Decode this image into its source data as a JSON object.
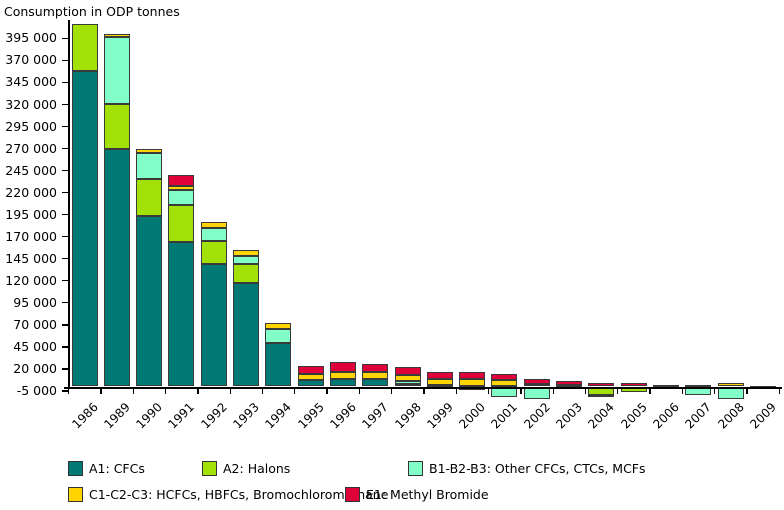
{
  "chart_data": {
    "type": "bar",
    "stacked": true,
    "title": "Consumption in ODP tonnes",
    "ylabel": "Consumption in ODP tonnes",
    "xlabel": "",
    "ylim": [
      -5000,
      395000
    ],
    "ytick_step": 25000,
    "ytick_labels": [
      "395 000",
      "370 000",
      "345 000",
      "320 000",
      "295 000",
      "270 000",
      "245 000",
      "220 000",
      "195 000",
      "170 000",
      "145 000",
      "120 000",
      "95 000",
      "70 000",
      "45 000",
      "20 000",
      "-5 000"
    ],
    "ytick_values": [
      395000,
      370000,
      345000,
      320000,
      295000,
      270000,
      245000,
      220000,
      195000,
      170000,
      145000,
      120000,
      95000,
      70000,
      45000,
      20000,
      -5000
    ],
    "grid": false,
    "legend_position": "bottom",
    "categories": [
      "1986",
      "1989",
      "1990",
      "1991",
      "1992",
      "1993",
      "1994",
      "1995",
      "1996",
      "1997",
      "1998",
      "1999",
      "2000",
      "2001",
      "2002",
      "2003",
      "2004",
      "2005",
      "2006",
      "2007",
      "2008",
      "2009"
    ],
    "series": [
      {
        "name": "A1: CFCs",
        "color": "#007874",
        "values": [
          358000,
          270000,
          193000,
          164000,
          139000,
          117000,
          49000,
          7000,
          9000,
          8000,
          3000,
          2000,
          1000,
          1000,
          0,
          0,
          0,
          0,
          0,
          0,
          0,
          0
        ]
      },
      {
        "name": "A2: Halons",
        "color": "#A2E00A",
        "values": [
          53000,
          51000,
          42000,
          42000,
          26000,
          22000,
          0,
          0,
          0,
          0,
          0,
          0,
          0,
          0,
          0,
          0,
          -10000,
          -6000,
          0,
          0,
          0,
          0
        ]
      },
      {
        "name": "B1-B2-B3: Other CFCs, CTCs, MCFs",
        "color": "#82FFC8",
        "values": [
          0,
          76000,
          30000,
          17000,
          15000,
          9000,
          16000,
          0,
          0,
          0,
          3000,
          0,
          -4000,
          -12000,
          -14000,
          0,
          -1000,
          0,
          -1000,
          -10000,
          -14000,
          -1000
        ]
      },
      {
        "name": "C1-C2-C3: HCFCs, HBFCs, Bromochloromethane",
        "color": "#FFD400",
        "values": [
          0,
          3000,
          4000,
          5000,
          7000,
          7000,
          7000,
          7000,
          8000,
          8000,
          7000,
          7000,
          7000,
          6000,
          3000,
          2000,
          0,
          0,
          1000,
          1000,
          4000,
          1000
        ]
      },
      {
        "name": "E1: Methyl Bromide",
        "color": "#DF013A",
        "values": [
          0,
          0,
          0,
          12000,
          0,
          0,
          0,
          9000,
          11000,
          9000,
          9000,
          8000,
          8000,
          7000,
          6000,
          4000,
          4000,
          4000,
          1000,
          1000,
          0,
          0
        ]
      }
    ]
  }
}
